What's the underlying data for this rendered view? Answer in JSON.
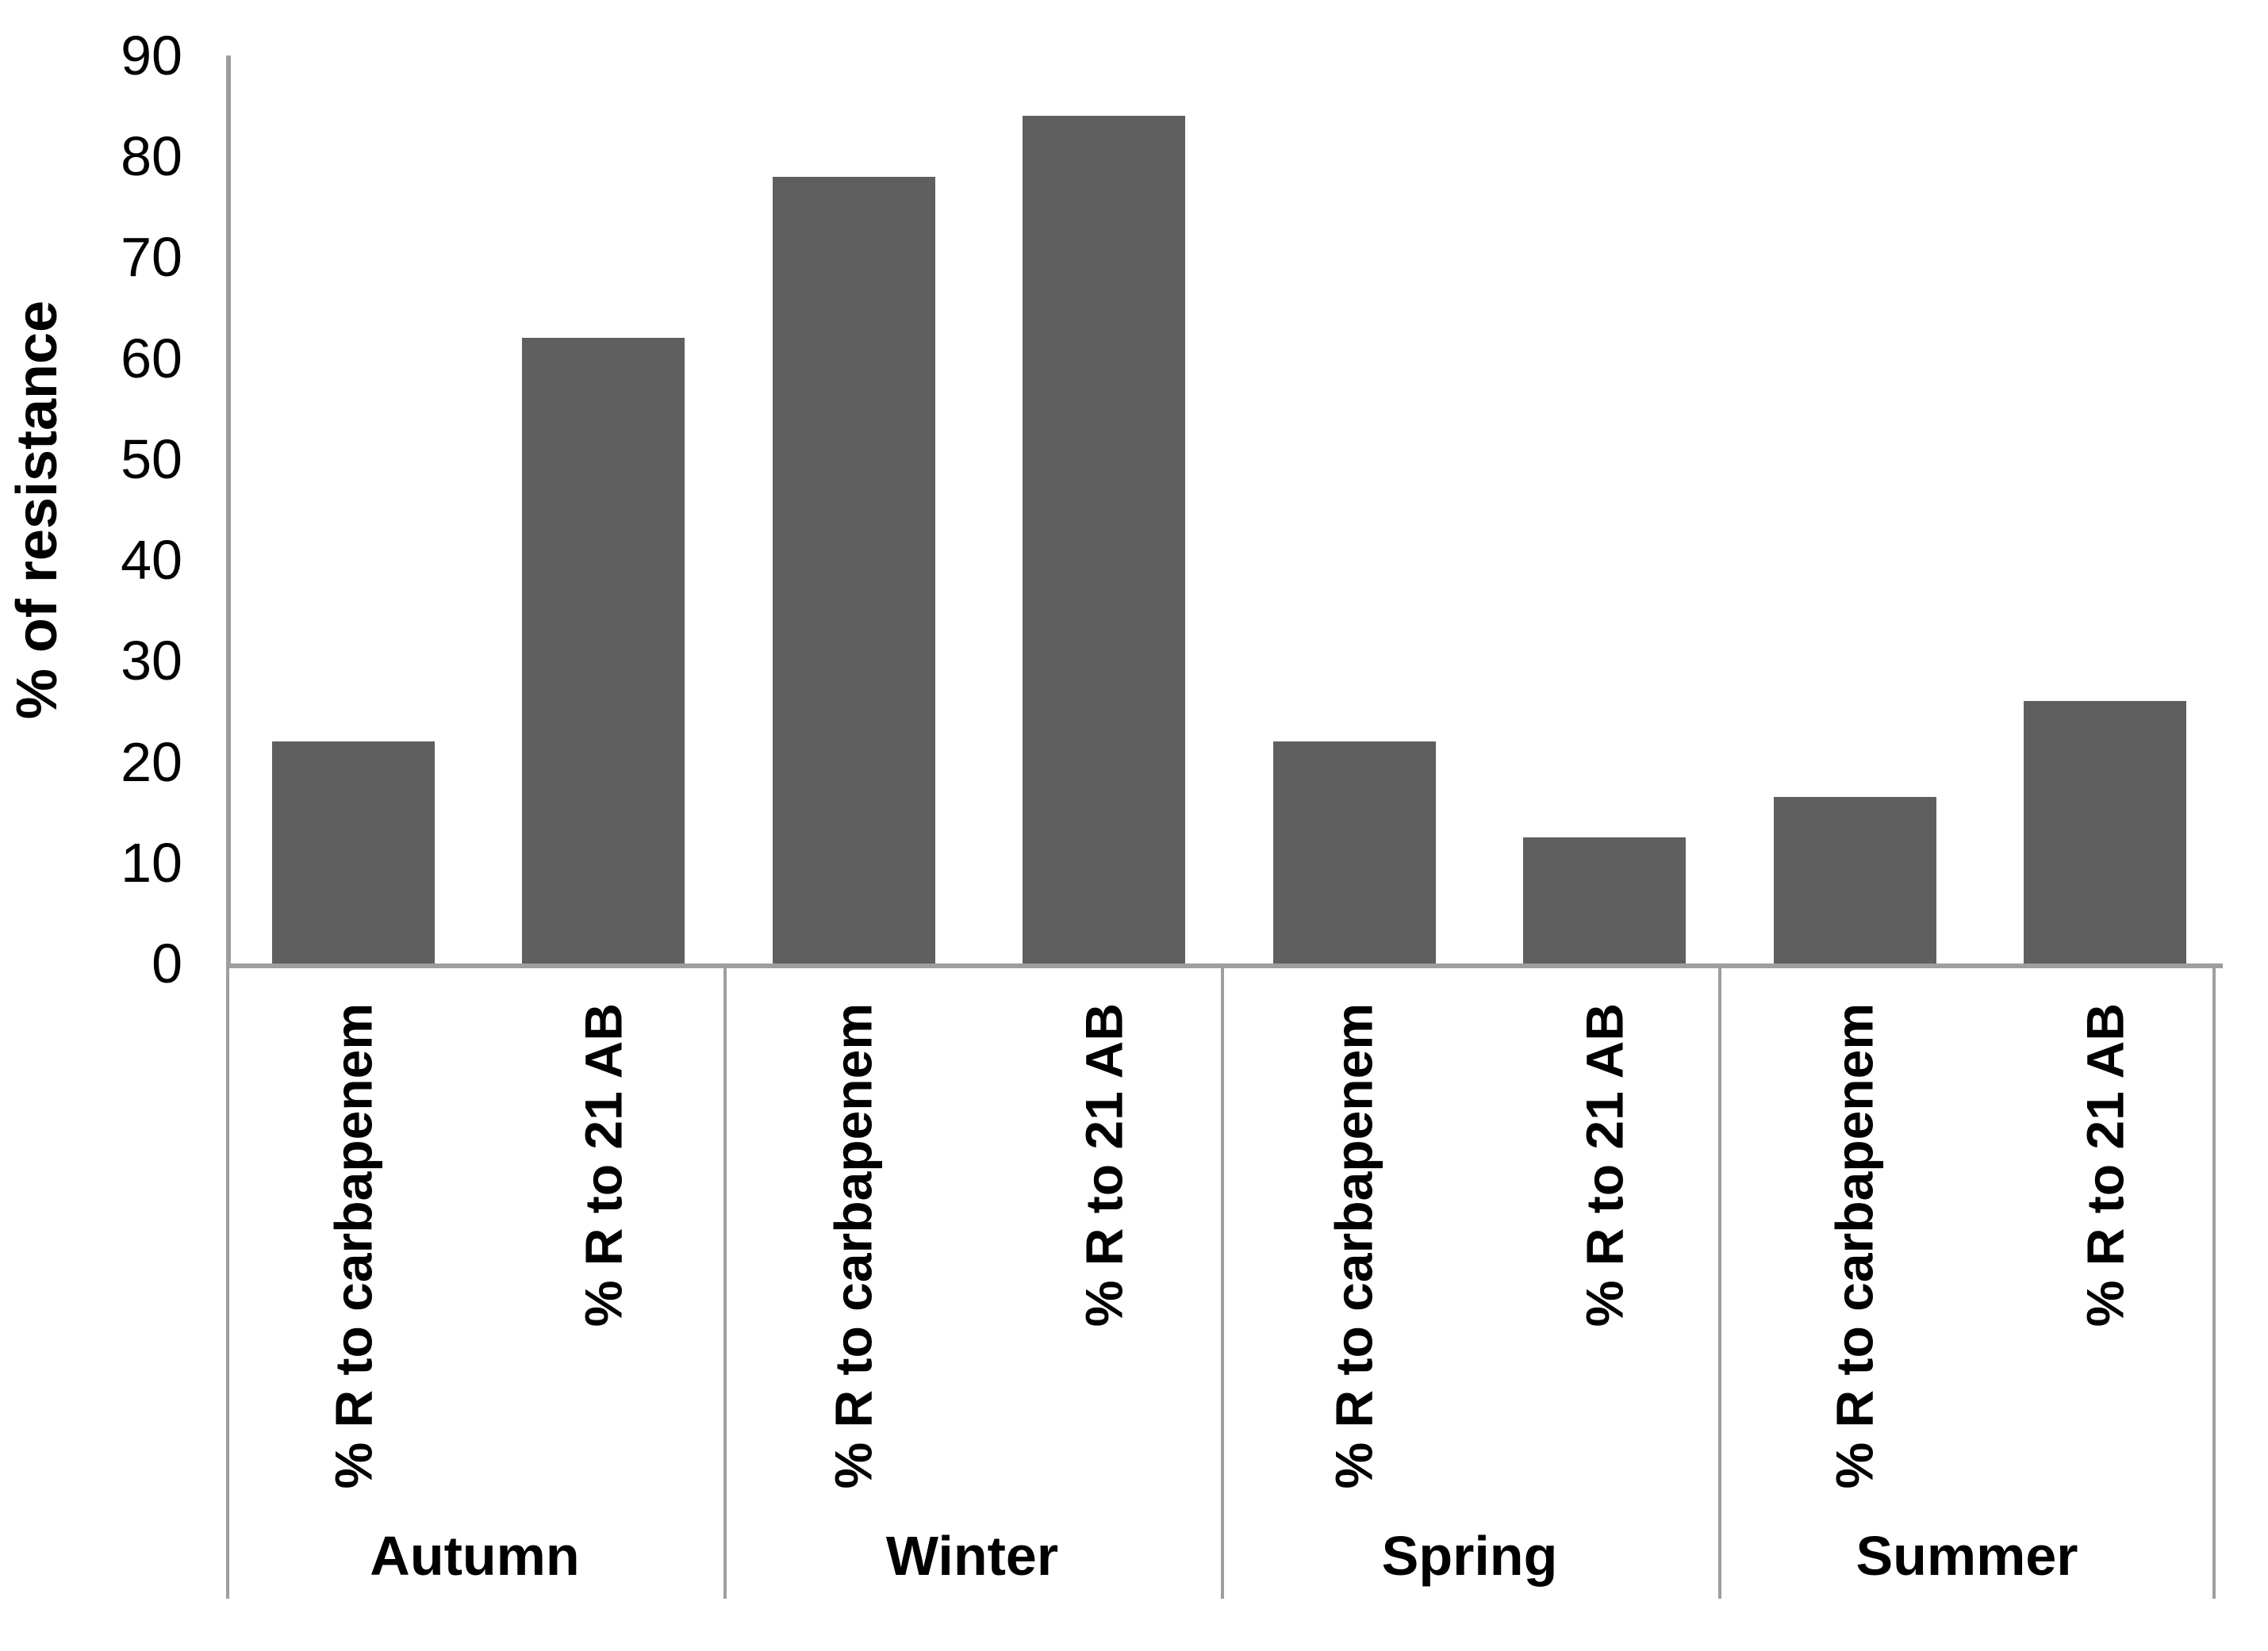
{
  "chart_data": {
    "type": "bar",
    "title": "",
    "ylabel": "% of resistance",
    "xlabel": "",
    "ylim": [
      0,
      90
    ],
    "yticks": [
      0,
      10,
      20,
      30,
      40,
      50,
      60,
      70,
      80,
      90
    ],
    "grid": false,
    "legend": false,
    "groups": [
      "Autumn",
      "Winter",
      "Spring",
      "Summer"
    ],
    "bar_labels": [
      "% R to carbapenem",
      "% R to 21 AB"
    ],
    "series": [
      {
        "group": "Autumn",
        "label": "% R to carbapenem",
        "value": 22
      },
      {
        "group": "Autumn",
        "label": "% R to 21 AB",
        "value": 62
      },
      {
        "group": "Winter",
        "label": "% R to carbapenem",
        "value": 78
      },
      {
        "group": "Winter",
        "label": "% R to 21 AB",
        "value": 84
      },
      {
        "group": "Spring",
        "label": "% R to carbapenem",
        "value": 22
      },
      {
        "group": "Spring",
        "label": "% R to 21 AB",
        "value": 12.5
      },
      {
        "group": "Summer",
        "label": "% R to carbapenem",
        "value": 16.5
      },
      {
        "group": "Summer",
        "label": "% R to 21 AB",
        "value": 26
      }
    ],
    "colors": {
      "bar": "#5f5f5f",
      "axis": "#9e9e9e",
      "text": "#000000",
      "background": "#ffffff"
    }
  }
}
